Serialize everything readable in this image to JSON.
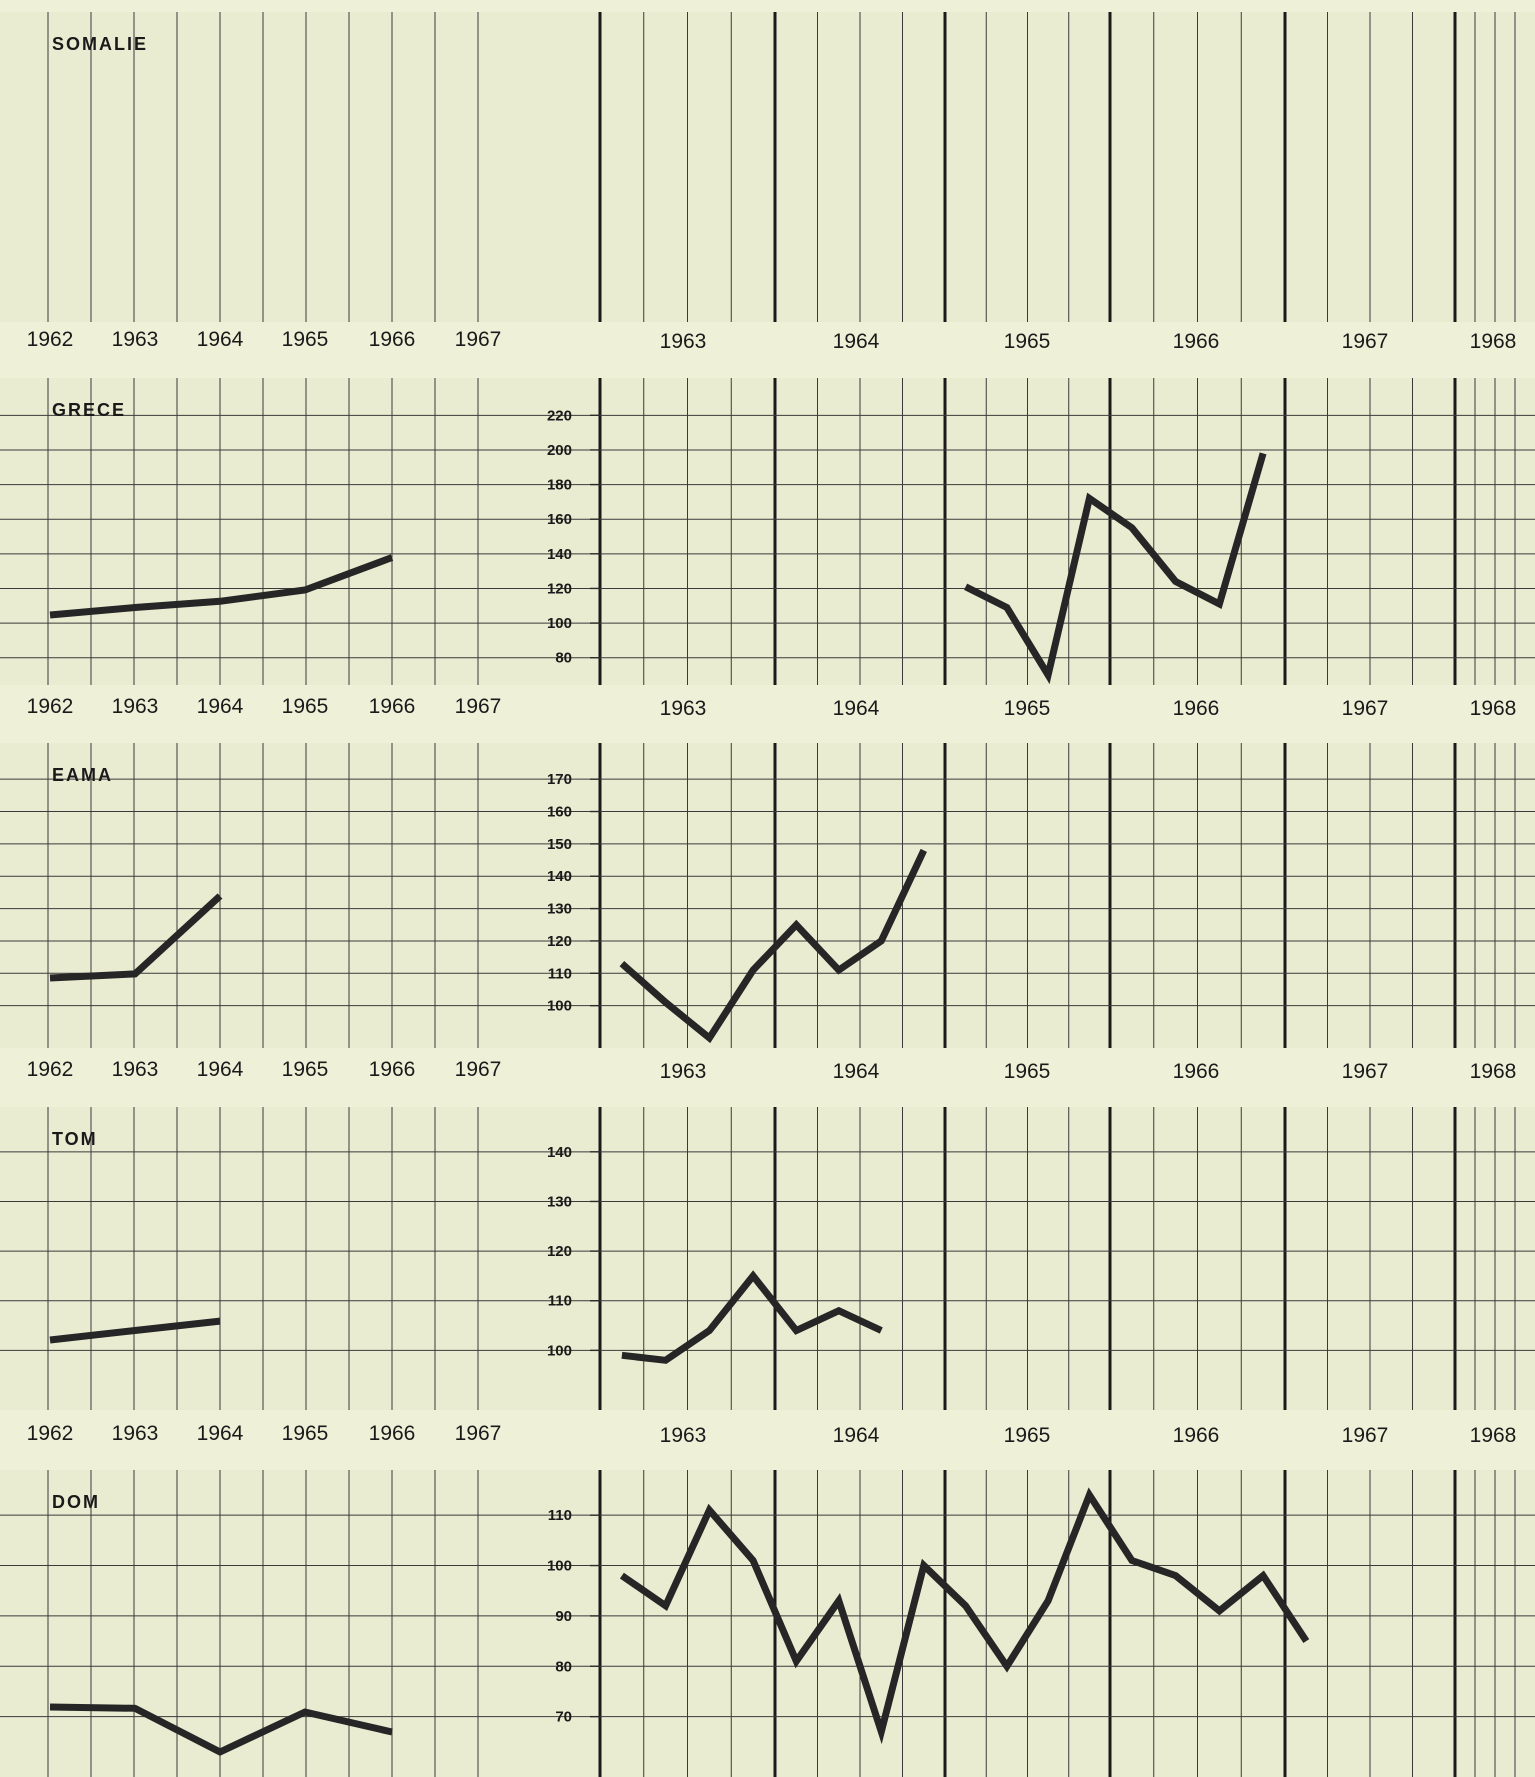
{
  "chart_data": [
    {
      "type": "line",
      "title": "SOMALIE",
      "annual": {
        "x_ticks": [
          "1962",
          "1963",
          "1964",
          "1965",
          "1966",
          "1967"
        ],
        "x": [],
        "y": []
      },
      "quarterly": {
        "x_ticks": [
          "1963",
          "1964",
          "1965",
          "1966",
          "1967",
          "1968"
        ],
        "y_ticks": [],
        "x": [],
        "y": []
      }
    },
    {
      "type": "line",
      "title": "GRECE",
      "annual": {
        "x_ticks": [
          "1962",
          "1963",
          "1964",
          "1965",
          "1966",
          "1967"
        ],
        "x": [
          1962,
          1963,
          1964,
          1965,
          1966
        ],
        "y": [
          100,
          106,
          111,
          120,
          146
        ]
      },
      "quarterly": {
        "x_ticks": [
          "1963",
          "1964",
          "1965",
          "1966",
          "1967",
          "1968"
        ],
        "y_ticks": [
          "220",
          "200",
          "180",
          "160",
          "140",
          "120",
          "100",
          "80"
        ],
        "ylim": [
          70,
          230
        ],
        "x": [
          "1965-Q1",
          "1965-Q2",
          "1965-Q3",
          "1965-Q4",
          "1966-Q1",
          "1966-Q2",
          "1966-Q3",
          "1966-Q4"
        ],
        "y": [
          121,
          109,
          70,
          172,
          155,
          124,
          111,
          198
        ]
      }
    },
    {
      "type": "line",
      "title": "EAMA",
      "annual": {
        "x_ticks": [
          "1962",
          "1963",
          "1964",
          "1965",
          "1966",
          "1967"
        ],
        "x": [
          1962,
          1963,
          1964
        ],
        "y": [
          100,
          102,
          140
        ]
      },
      "quarterly": {
        "x_ticks": [
          "1963",
          "1964",
          "1965",
          "1966",
          "1967",
          "1968"
        ],
        "y_ticks": [
          "170",
          "160",
          "150",
          "140",
          "130",
          "120",
          "110",
          "100"
        ],
        "ylim": [
          90,
          175
        ],
        "x": [
          "1963-Q1",
          "1963-Q2",
          "1963-Q3",
          "1963-Q4",
          "1964-Q1",
          "1964-Q2",
          "1964-Q3",
          "1964-Q4"
        ],
        "y": [
          113,
          101,
          90,
          111,
          125,
          111,
          120,
          148
        ]
      }
    },
    {
      "type": "line",
      "title": "TOM",
      "annual": {
        "x_ticks": [
          "1962",
          "1963",
          "1964",
          "1965",
          "1966",
          "1967"
        ],
        "x": [
          1962,
          1963,
          1964
        ],
        "y": [
          100,
          104.5,
          109
        ]
      },
      "quarterly": {
        "x_ticks": [
          "1963",
          "1964",
          "1965",
          "1966",
          "1967",
          "1968"
        ],
        "y_ticks": [
          "140",
          "130",
          "120",
          "110",
          "100"
        ],
        "ylim": [
          90,
          145
        ],
        "x": [
          "1963-Q1",
          "1963-Q2",
          "1963-Q3",
          "1963-Q4",
          "1964-Q1",
          "1964-Q2",
          "1964-Q3"
        ],
        "y": [
          99,
          98,
          104,
          115,
          104,
          108,
          104
        ]
      }
    },
    {
      "type": "line",
      "title": "DOM",
      "annual": {
        "x_ticks": [
          "1962",
          "1963",
          "1964",
          "1965",
          "1966",
          "1967"
        ],
        "x": [
          1962,
          1963,
          1964,
          1965,
          1966
        ],
        "y": [
          100,
          99.5,
          82,
          98,
          90
        ]
      },
      "quarterly": {
        "x_ticks": [
          "1963",
          "1964",
          "1965",
          "1966",
          "1967",
          "1968"
        ],
        "y_ticks": [
          "110",
          "100",
          "90",
          "80",
          "70"
        ],
        "ylim": [
          60,
          115
        ],
        "x": [
          "1963-Q1",
          "1963-Q2",
          "1963-Q3",
          "1963-Q4",
          "1964-Q1",
          "1964-Q2",
          "1964-Q3",
          "1964-Q4",
          "1965-Q1",
          "1965-Q2",
          "1965-Q3",
          "1965-Q4",
          "1966-Q1",
          "1966-Q2",
          "1966-Q3",
          "1966-Q4",
          "1967-Q1"
        ],
        "y": [
          98,
          92,
          111,
          101,
          81,
          93,
          67,
          100,
          92,
          80,
          93,
          114,
          101,
          98,
          91,
          98,
          85
        ]
      }
    }
  ]
}
